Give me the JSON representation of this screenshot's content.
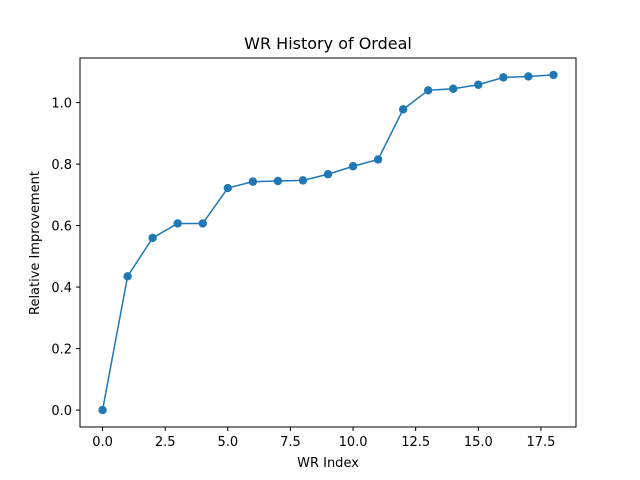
{
  "chart_data": {
    "type": "line",
    "title": "WR History of Ordeal",
    "xlabel": "WR Index",
    "ylabel": "Relative Improvement",
    "xlim": [
      -0.9,
      18.9
    ],
    "ylim": [
      -0.055,
      1.145
    ],
    "xticks": [
      0,
      2.5,
      5,
      7.5,
      10,
      12.5,
      15,
      17.5
    ],
    "xtick_labels": [
      "0.0",
      "2.5",
      "5.0",
      "7.5",
      "10.0",
      "12.5",
      "15.0",
      "17.5"
    ],
    "yticks": [
      0,
      0.2,
      0.4,
      0.6,
      0.8,
      1.0
    ],
    "ytick_labels": [
      "0.0",
      "0.2",
      "0.4",
      "0.6",
      "0.8",
      "1.0"
    ],
    "grid": false,
    "color": "#1f77b4",
    "marker": "circle",
    "series": [
      {
        "x": [
          0,
          1,
          2,
          3,
          4,
          5,
          6,
          7,
          8,
          9,
          10,
          11,
          12,
          13,
          14,
          15,
          16,
          17,
          18
        ],
        "y": [
          0.0,
          0.435,
          0.56,
          0.607,
          0.607,
          0.722,
          0.743,
          0.745,
          0.747,
          0.767,
          0.793,
          0.815,
          0.978,
          1.04,
          1.045,
          1.058,
          1.082,
          1.085,
          1.09
        ]
      }
    ]
  }
}
